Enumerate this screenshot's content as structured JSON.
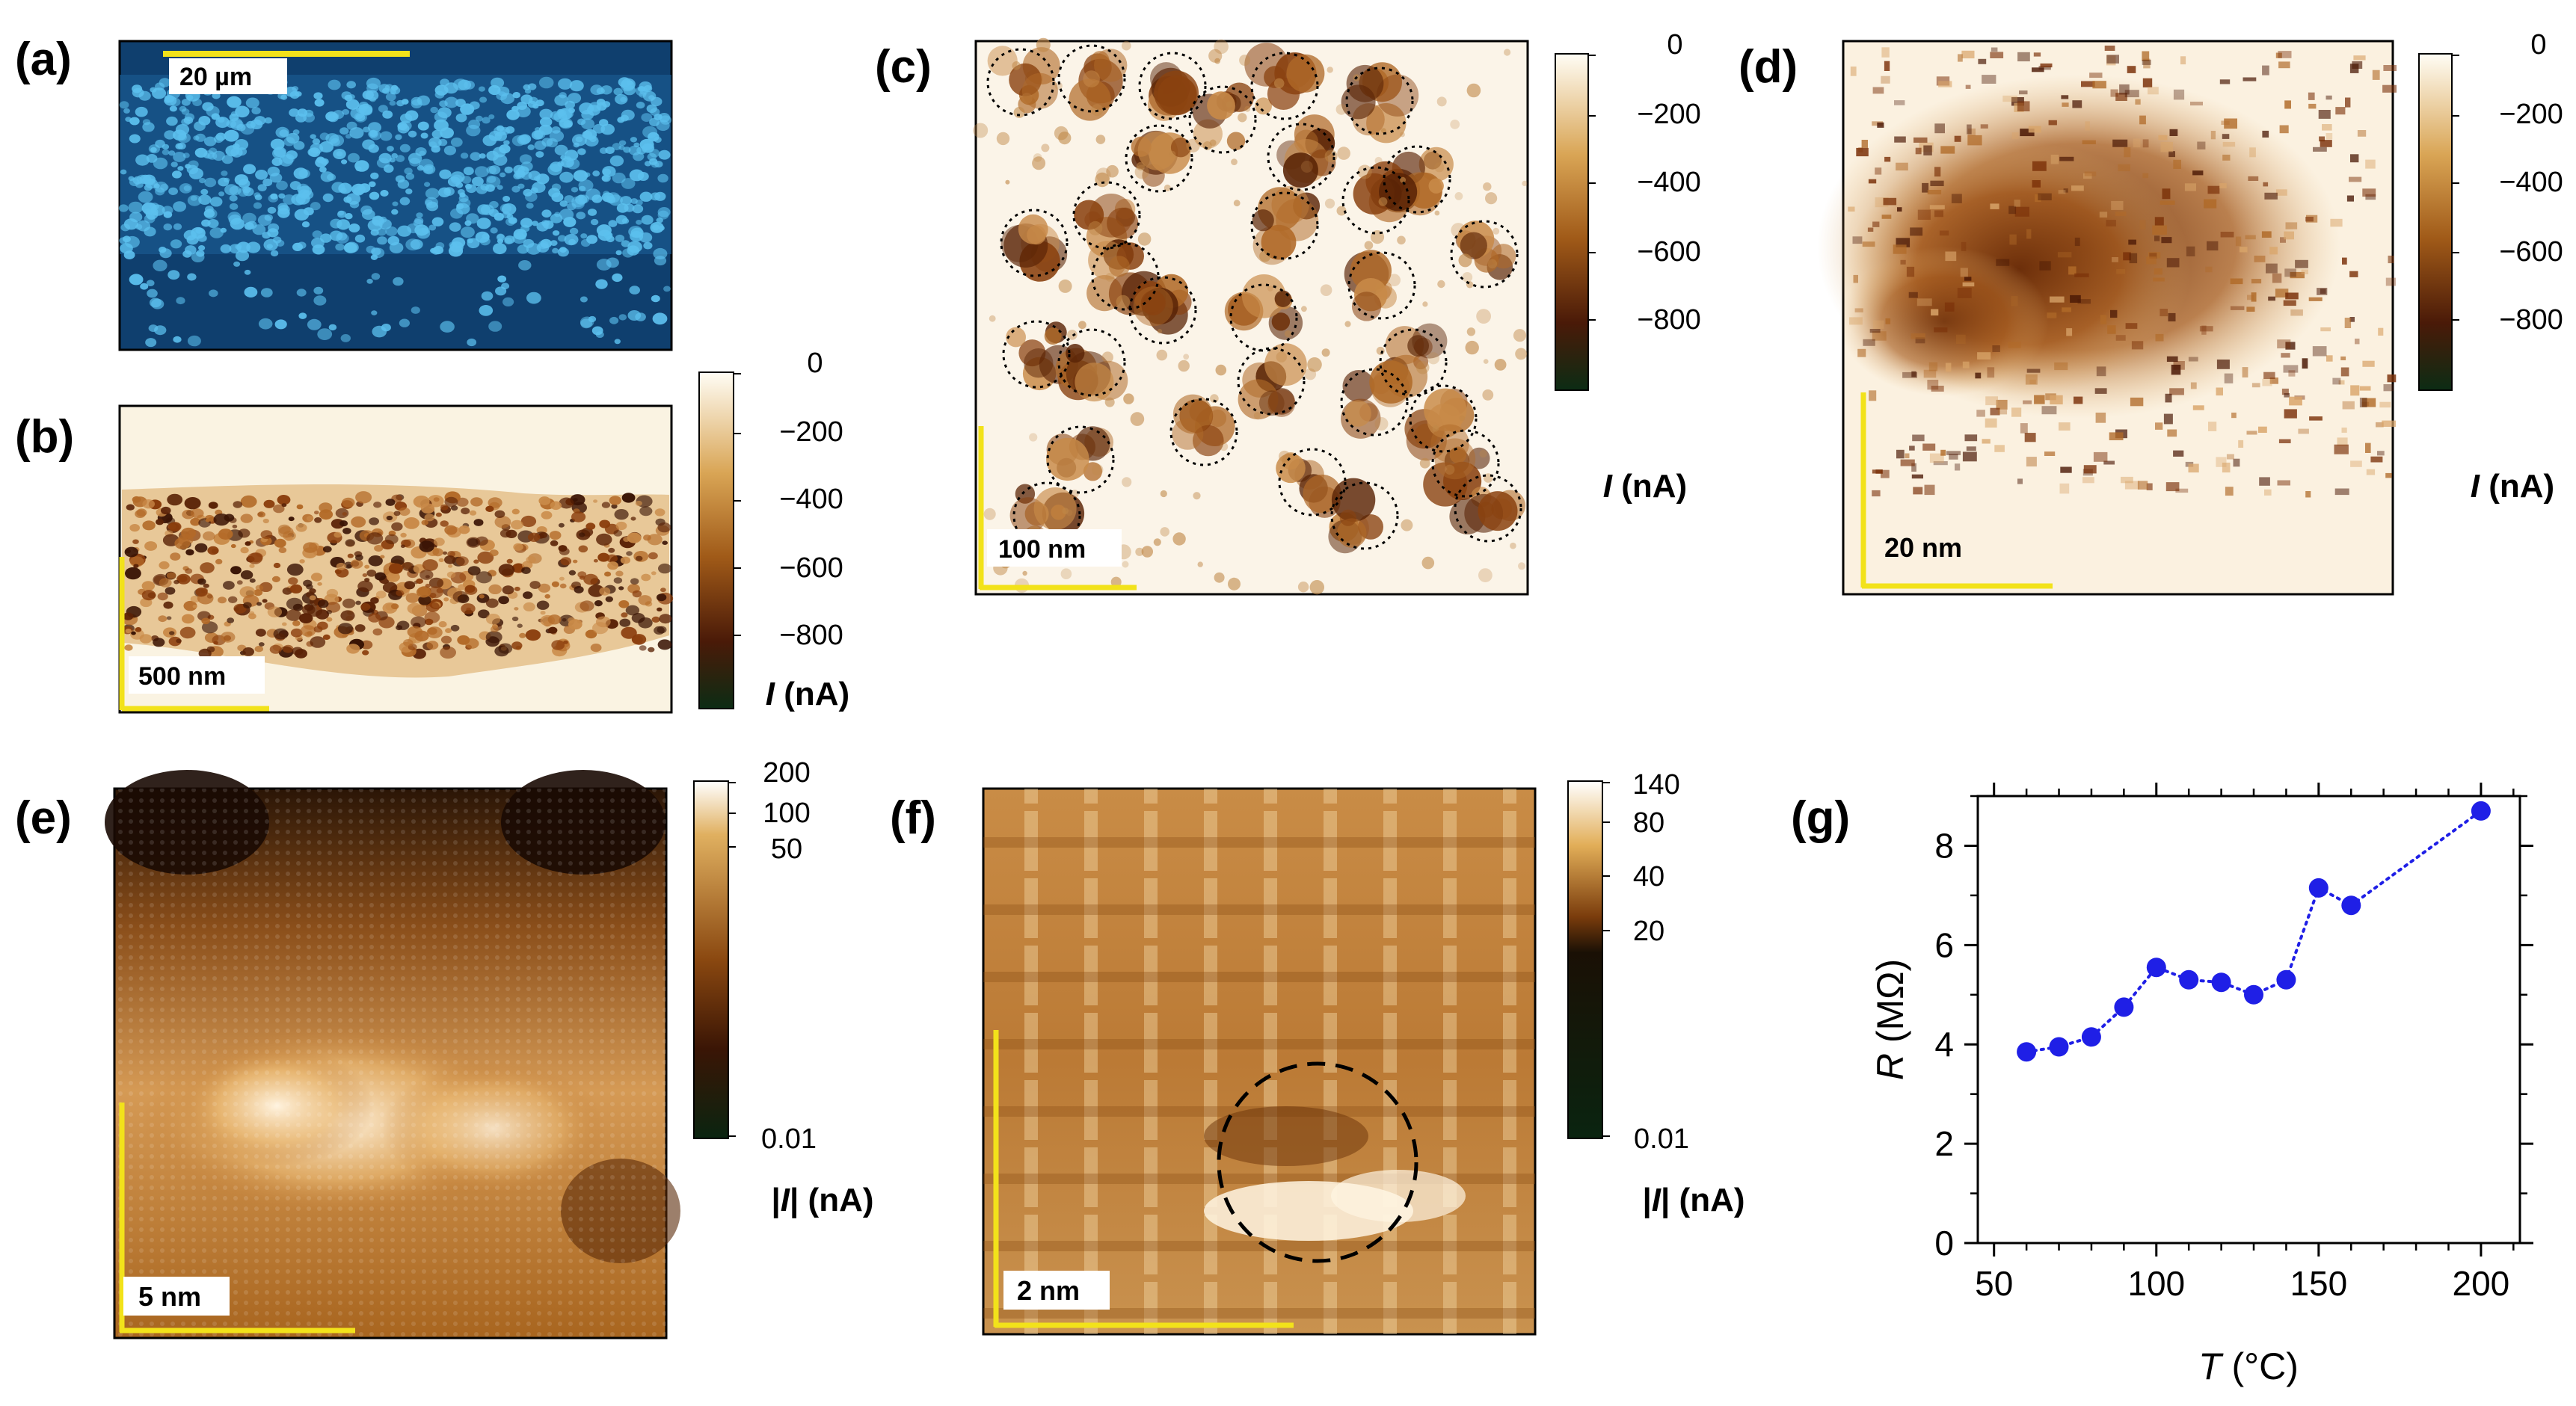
{
  "figure": {
    "panels": {
      "a": {
        "label": "(a)",
        "scale_bar": "20 µm"
      },
      "b": {
        "label": "(b)",
        "scale_bar": "500 nm",
        "colorbar_ticks": [
          "0",
          "−200",
          "−400",
          "−600",
          "−800"
        ],
        "colorbar_label_var": "I",
        "colorbar_label_unit": " (nA)"
      },
      "c": {
        "label": "(c)",
        "scale_bar": "100 nm",
        "colorbar_ticks": [
          "0",
          "−200",
          "−400",
          "−600",
          "−800"
        ],
        "colorbar_label_var": "I",
        "colorbar_label_unit": " (nA)"
      },
      "d": {
        "label": "(d)",
        "scale_bar": "20 nm",
        "colorbar_ticks": [
          "0",
          "−200",
          "−400",
          "−600",
          "−800"
        ],
        "colorbar_label_var": "I",
        "colorbar_label_unit": " (nA)"
      },
      "e": {
        "label": "(e)",
        "scale_bar": "5 nm",
        "colorbar_ticks": [
          "200",
          "100",
          "50",
          "0.01"
        ],
        "colorbar_label_pre": "|",
        "colorbar_label_var": "I",
        "colorbar_label_unit": "| (nA)"
      },
      "f": {
        "label": "(f)",
        "scale_bar": "2 nm",
        "colorbar_ticks": [
          "140",
          "80",
          "40",
          "20",
          "0.01"
        ],
        "colorbar_label_pre": "|",
        "colorbar_label_var": "I",
        "colorbar_label_unit": "| (nA)"
      },
      "g": {
        "label": "(g)"
      }
    },
    "colors": {
      "scale_bar": "#f2e21a",
      "marker": "#1f1fe6",
      "optical_bg": "#0f3f6e",
      "optical_dots": "#5cc0ee"
    }
  },
  "chart_data": {
    "type": "scatter",
    "x": [
      60,
      70,
      80,
      90,
      100,
      110,
      120,
      130,
      140,
      150,
      160,
      200
    ],
    "y": [
      3.85,
      3.95,
      4.15,
      4.75,
      5.55,
      5.3,
      5.25,
      5.0,
      5.3,
      7.15,
      6.8,
      8.7
    ],
    "xlabel_var": "T",
    "xlabel_unit": " (°C)",
    "ylabel_var": "R",
    "ylabel_unit": " (MΩ)",
    "xlim": [
      45,
      212
    ],
    "ylim": [
      0,
      9
    ],
    "xticks": [
      50,
      100,
      150,
      200
    ],
    "yticks": [
      0,
      2,
      4,
      6,
      8
    ],
    "grid": false,
    "line_style": "dotted",
    "marker": "circle"
  }
}
